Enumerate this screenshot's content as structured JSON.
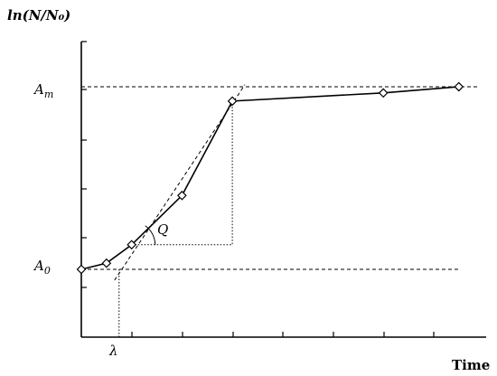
{
  "chart_data": {
    "type": "line",
    "xlabel": "Time",
    "ylabel": "ln(N/N₀)",
    "series": [
      {
        "name": "",
        "color": "#000000",
        "marker": "diamond-open",
        "x": [
          0,
          0.5,
          1,
          2,
          3,
          6,
          7.5
        ],
        "y": [
          0.0,
          0.15,
          0.6,
          1.8,
          4.1,
          4.3,
          4.45
        ]
      }
    ],
    "annotations": {
      "a_max": {
        "label": "A",
        "sub": "m",
        "y": 4.45
      },
      "a_zero": {
        "label": "A",
        "sub": "0",
        "y": 0.0
      },
      "lag": {
        "label": "λ",
        "x": 0.75
      },
      "slope": {
        "label": "Q"
      },
      "tangent": {
        "x": [
          0.75,
          3.25
        ],
        "y": [
          0.0,
          4.5
        ]
      }
    },
    "grid": false,
    "legend": "none"
  }
}
